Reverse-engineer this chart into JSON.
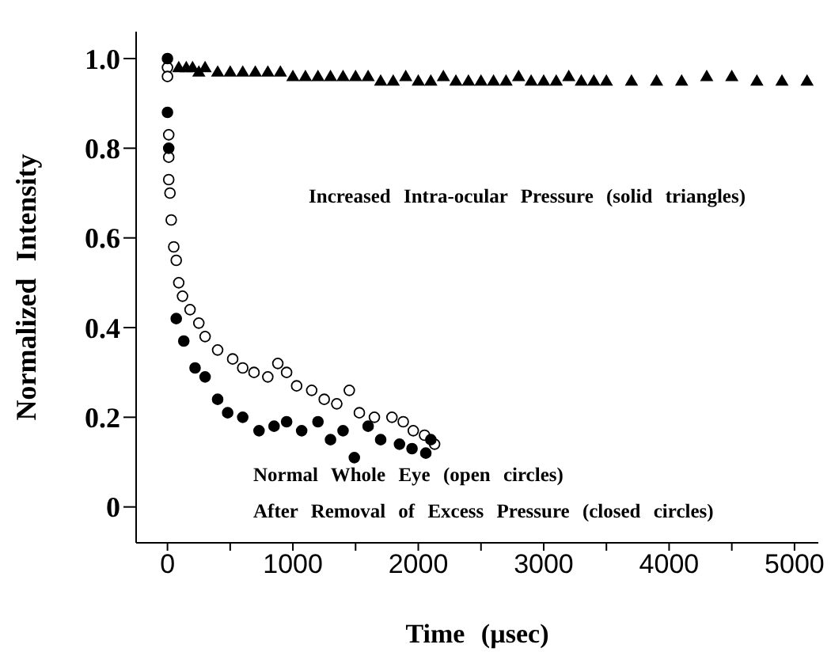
{
  "chart_data": {
    "type": "scatter",
    "xlabel": "Time (µsec)",
    "ylabel": "Normalized Intensity",
    "xlim": [
      -250,
      5190
    ],
    "ylim": [
      -0.08,
      1.06
    ],
    "xticks": [
      0,
      {
        "value": 500,
        "label": null
      },
      1000,
      {
        "value": 1500,
        "label": null
      },
      2000,
      {
        "value": 2500,
        "label": null
      },
      3000,
      {
        "value": 3500,
        "label": null
      },
      4000,
      {
        "value": 4500,
        "label": null
      },
      5000
    ],
    "yticks": [
      0,
      {
        "value": 0.2,
        "label": "0.2"
      },
      {
        "value": 0.4,
        "label": "0.4"
      },
      {
        "value": 0.6,
        "label": "0.6"
      },
      {
        "value": 0.8,
        "label": "0.8"
      },
      {
        "value": 1,
        "label": "1.0"
      }
    ],
    "grid": false,
    "legend": false,
    "annotations": [
      "Increased Intra-ocular Pressure (solid triangles)",
      "Normal Whole Eye (open circles)",
      "After Removal of Excess Pressure (closed circles)"
    ],
    "series": [
      {
        "color": "#000000",
        "marker": "triangle",
        "x": [
          90,
          150,
          200,
          250,
          300,
          400,
          500,
          600,
          700,
          800,
          900,
          1000,
          1100,
          1200,
          1300,
          1400,
          1500,
          1600,
          1700,
          1800,
          1900,
          2000,
          2100,
          2200,
          2300,
          2400,
          2500,
          2600,
          2700,
          2800,
          2900,
          3000,
          3100,
          3200,
          3300,
          3400,
          3500,
          3700,
          3900,
          4100,
          4300,
          4500,
          4700,
          4900,
          5100
        ],
        "values": [
          0.98,
          0.98,
          0.98,
          0.97,
          0.98,
          0.97,
          0.97,
          0.97,
          0.97,
          0.97,
          0.97,
          0.96,
          0.96,
          0.96,
          0.96,
          0.96,
          0.96,
          0.96,
          0.95,
          0.95,
          0.96,
          0.95,
          0.95,
          0.96,
          0.95,
          0.95,
          0.95,
          0.95,
          0.95,
          0.96,
          0.95,
          0.95,
          0.95,
          0.96,
          0.95,
          0.95,
          0.95,
          0.95,
          0.95,
          0.95,
          0.96,
          0.96,
          0.95,
          0.95,
          0.95
        ]
      },
      {
        "color": "#ffffff",
        "marker": "circle",
        "x": [
          0,
          0,
          10,
          10,
          10,
          20,
          30,
          50,
          70,
          90,
          120,
          180,
          250,
          300,
          400,
          520,
          600,
          690,
          800,
          880,
          950,
          1030,
          1150,
          1250,
          1350,
          1450,
          1530,
          1650,
          1790,
          1880,
          1960,
          2050,
          2130
        ],
        "values": [
          0.98,
          0.96,
          0.83,
          0.78,
          0.73,
          0.7,
          0.64,
          0.58,
          0.55,
          0.5,
          0.47,
          0.44,
          0.41,
          0.38,
          0.35,
          0.33,
          0.31,
          0.3,
          0.29,
          0.32,
          0.3,
          0.27,
          0.26,
          0.24,
          0.23,
          0.26,
          0.21,
          0.2,
          0.2,
          0.19,
          0.17,
          0.16,
          0.14
        ]
      },
      {
        "color": "#000000",
        "marker": "circle",
        "x": [
          0,
          0,
          10,
          70,
          130,
          220,
          300,
          400,
          480,
          600,
          730,
          850,
          950,
          1070,
          1200,
          1300,
          1400,
          1490,
          1600,
          1700,
          1850,
          1950,
          2060,
          2100
        ],
        "values": [
          1.0,
          0.88,
          0.8,
          0.42,
          0.37,
          0.31,
          0.29,
          0.24,
          0.21,
          0.2,
          0.17,
          0.18,
          0.19,
          0.17,
          0.19,
          0.15,
          0.17,
          0.11,
          0.18,
          0.15,
          0.14,
          0.13,
          0.12,
          0.15
        ]
      }
    ]
  }
}
